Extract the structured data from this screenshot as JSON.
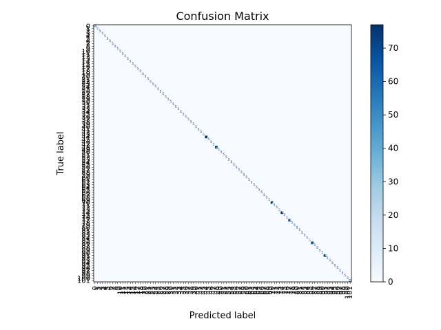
{
  "chart_data": {
    "type": "heatmap",
    "title": "Confusion Matrix",
    "xlabel": "Predicted label",
    "ylabel": "True label",
    "n_classes": 102,
    "class_labels_first_last": [
      "0",
      "101"
    ],
    "off_diagonal_value": 0,
    "diagonal_values_approx": {
      "default": 5,
      "44": 77,
      "48": 77,
      "70": 72,
      "74": 76,
      "77": 70,
      "86": 73,
      "91": 74,
      "0": 15,
      "101": 15
    },
    "colorbar": {
      "cmap": "Blues",
      "vmin": 0,
      "vmax": 77,
      "ticks": [
        0,
        10,
        20,
        30,
        40,
        50,
        60,
        70
      ]
    },
    "cell_annotations": true
  }
}
